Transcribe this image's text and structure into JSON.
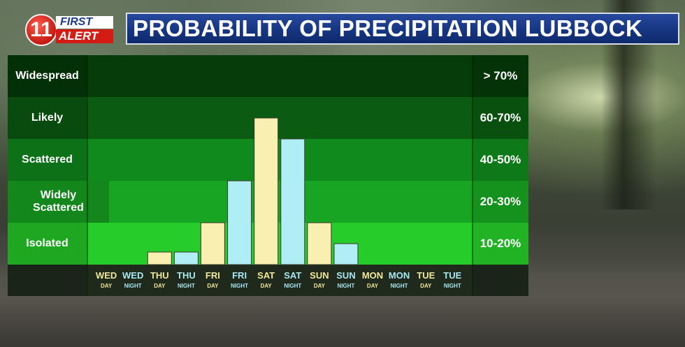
{
  "header": {
    "logo_number": "11",
    "logo_first": "FIRST",
    "logo_alert": "ALERT",
    "title": "PROBABILITY OF PRECIPITATION LUBBOCK"
  },
  "colors": {
    "day_bar": "#f8efb0",
    "night_bar": "#b0eef5",
    "title_bar": "#163682"
  },
  "bands": [
    {
      "label": "Widespread",
      "range": "> 70%",
      "color": "#063b0a"
    },
    {
      "label": "Likely",
      "range": "60-70%",
      "color": "#0b5c12"
    },
    {
      "label": "Scattered",
      "range": "40-50%",
      "color": "#118a1d"
    },
    {
      "label": "Widely Scattered",
      "range": "20-30%",
      "color": "#18a523"
    },
    {
      "label": "Isolated",
      "range": "10-20%",
      "color": "#26cc2a"
    }
  ],
  "chart_data": {
    "type": "bar",
    "categories": [
      {
        "day": "WED",
        "period": "DAY"
      },
      {
        "day": "WED",
        "period": "NIGHT"
      },
      {
        "day": "THU",
        "period": "DAY"
      },
      {
        "day": "THU",
        "period": "NIGHT"
      },
      {
        "day": "FRI",
        "period": "DAY"
      },
      {
        "day": "FRI",
        "period": "NIGHT"
      },
      {
        "day": "SAT",
        "period": "DAY"
      },
      {
        "day": "SAT",
        "period": "NIGHT"
      },
      {
        "day": "SUN",
        "period": "DAY"
      },
      {
        "day": "SUN",
        "period": "NIGHT"
      },
      {
        "day": "MON",
        "period": "DAY"
      },
      {
        "day": "MON",
        "period": "NIGHT"
      },
      {
        "day": "TUE",
        "period": "DAY"
      },
      {
        "day": "TUE",
        "period": "NIGHT"
      }
    ],
    "values": [
      0,
      0,
      0.3,
      0.3,
      1.0,
      2.0,
      3.5,
      3.0,
      1.0,
      0.5,
      0,
      0,
      0,
      0
    ],
    "ylim": [
      0,
      5
    ],
    "y_scale_note": "",
    "grid": false
  }
}
